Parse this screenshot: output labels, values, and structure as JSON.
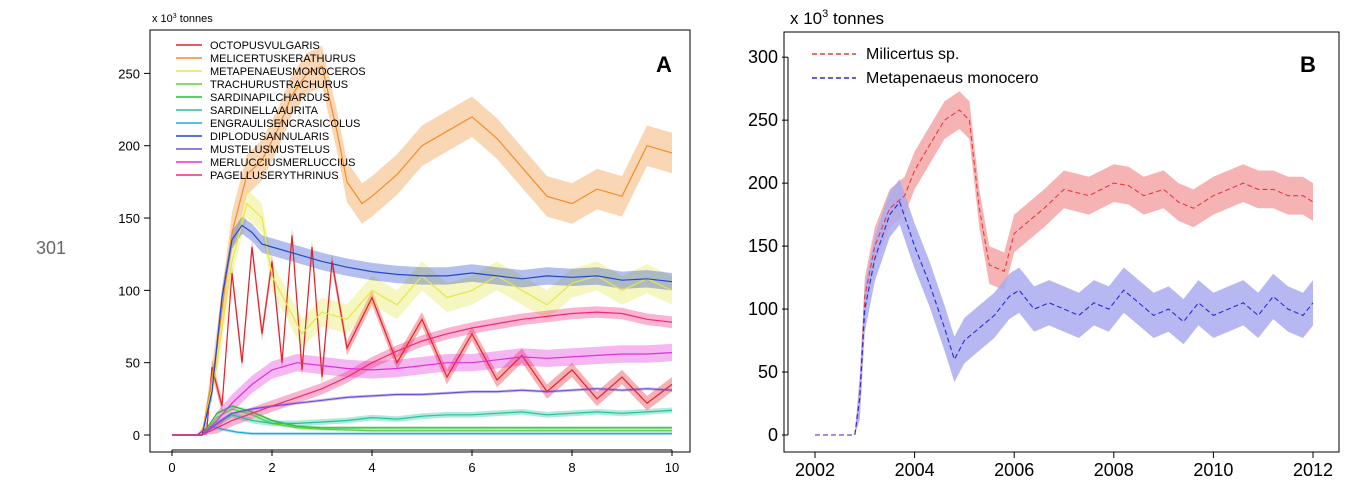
{
  "page_number": "301",
  "chart_data": [
    {
      "type": "line",
      "panel": "A",
      "ylabel_prefix": "x 10",
      "ylabel_exp": "3",
      "ylabel_suffix": " tonnes",
      "xlim": [
        0,
        10
      ],
      "ylim": [
        0,
        280
      ],
      "xticks": [
        0,
        2,
        4,
        6,
        8,
        10
      ],
      "yticks": [
        0,
        50,
        100,
        150,
        200,
        250
      ],
      "grid": false,
      "legend_position": "top-left",
      "series": [
        {
          "name": "OCTOPUSVULGARIS",
          "color": "#e8202a",
          "band": 5,
          "x": [
            0,
            0.5,
            0.7,
            0.8,
            1.0,
            1.2,
            1.4,
            1.6,
            1.8,
            2.0,
            2.2,
            2.4,
            2.6,
            2.8,
            3.0,
            3.2,
            3.5,
            4,
            4.5,
            5,
            5.5,
            6,
            6.5,
            7,
            7.5,
            8,
            8.5,
            9,
            9.5,
            10
          ],
          "y": [
            0,
            0,
            5,
            47,
            20,
            112,
            50,
            130,
            70,
            120,
            50,
            138,
            45,
            130,
            40,
            120,
            60,
            95,
            50,
            80,
            40,
            70,
            38,
            55,
            30,
            45,
            25,
            40,
            22,
            35
          ]
        },
        {
          "name": "MELICERTUSKERATHURUS",
          "color": "#f28c28",
          "band": 14,
          "x": [
            0,
            0.6,
            0.9,
            1.2,
            1.5,
            1.8,
            2.1,
            2.4,
            2.7,
            3.0,
            3.3,
            3.5,
            3.8,
            4.0,
            4.5,
            5.0,
            5.5,
            6.0,
            6.5,
            7.0,
            7.5,
            8.0,
            8.5,
            9.0,
            9.5,
            10
          ],
          "y": [
            0,
            0,
            60,
            140,
            180,
            190,
            210,
            235,
            250,
            255,
            210,
            175,
            160,
            165,
            180,
            200,
            210,
            220,
            205,
            185,
            165,
            160,
            170,
            165,
            200,
            195
          ]
        },
        {
          "name": "METAPENAEUSMONOCEROS",
          "color": "#e6e64a",
          "band": 10,
          "x": [
            0,
            0.6,
            0.9,
            1.2,
            1.5,
            1.8,
            2.0,
            2.3,
            2.6,
            3.0,
            3.5,
            4.0,
            4.5,
            5.0,
            5.5,
            6.0,
            6.5,
            7.0,
            7.5,
            8.0,
            8.5,
            9.0,
            9.5,
            10
          ],
          "y": [
            0,
            0,
            50,
            120,
            160,
            150,
            110,
            90,
            70,
            85,
            80,
            100,
            90,
            110,
            95,
            100,
            110,
            100,
            90,
            105,
            110,
            100,
            108,
            100
          ]
        },
        {
          "name": "TRACHURUSTRACHURUS",
          "color": "#5ecf3a",
          "band": 1,
          "x": [
            0,
            0.6,
            0.9,
            1.2,
            1.6,
            2.0,
            2.5,
            3,
            4,
            5,
            6,
            7,
            8,
            9,
            10
          ],
          "y": [
            0,
            0,
            12,
            18,
            14,
            8,
            5,
            4,
            3,
            3,
            3,
            3,
            3,
            3,
            3
          ]
        },
        {
          "name": "SARDINAPILCHARDUS",
          "color": "#1fbf3a",
          "band": 1,
          "x": [
            0,
            0.6,
            0.9,
            1.2,
            1.6,
            2.0,
            2.5,
            3,
            4,
            5,
            6,
            7,
            8,
            9,
            10
          ],
          "y": [
            0,
            0,
            15,
            20,
            16,
            10,
            6,
            5,
            5,
            5,
            5,
            5,
            5,
            5,
            5
          ]
        },
        {
          "name": "SARDINELLAAURITA",
          "color": "#20c49a",
          "band": 2,
          "x": [
            0,
            0.6,
            0.9,
            1.2,
            1.6,
            2.0,
            2.5,
            3,
            3.5,
            4,
            4.5,
            5,
            5.5,
            6,
            6.5,
            7,
            7.5,
            8,
            8.5,
            9,
            9.5,
            10
          ],
          "y": [
            0,
            0,
            8,
            14,
            10,
            8,
            8,
            9,
            10,
            12,
            11,
            13,
            14,
            14,
            15,
            16,
            14,
            15,
            16,
            15,
            16,
            17
          ]
        },
        {
          "name": "ENGRAULISENCRASICOLUS",
          "color": "#22a8e0",
          "band": 1,
          "x": [
            0,
            0.6,
            0.8,
            1.0,
            1.3,
            1.6,
            2.0,
            3,
            4,
            5,
            6,
            7,
            8,
            9,
            10
          ],
          "y": [
            0,
            0,
            6,
            4,
            2,
            1,
            1,
            1,
            1,
            1,
            1,
            1,
            1,
            1,
            1
          ]
        },
        {
          "name": "DIPLODUSANNULARIS",
          "color": "#2448c8",
          "band": 6,
          "x": [
            0,
            0.6,
            0.8,
            1.0,
            1.2,
            1.4,
            1.6,
            1.8,
            2.0,
            2.5,
            3.0,
            3.5,
            4.0,
            4.5,
            5.0,
            5.5,
            6.0,
            6.5,
            7.0,
            7.5,
            8.0,
            8.5,
            9.0,
            9.5,
            10
          ],
          "y": [
            0,
            0,
            30,
            95,
            135,
            145,
            140,
            132,
            130,
            125,
            120,
            116,
            113,
            111,
            110,
            110,
            112,
            110,
            108,
            110,
            109,
            110,
            107,
            108,
            106
          ]
        },
        {
          "name": "MUSTELUSMUSTELUS",
          "color": "#7050d8",
          "band": 1,
          "x": [
            0,
            0.6,
            0.9,
            1.2,
            1.6,
            2.0,
            2.5,
            3.0,
            3.5,
            4.0,
            4.5,
            5.0,
            5.5,
            6.0,
            6.5,
            7.0,
            7.5,
            8.0,
            8.5,
            9.0,
            9.5,
            10
          ],
          "y": [
            0,
            0,
            8,
            15,
            18,
            20,
            22,
            24,
            26,
            27,
            28,
            28,
            29,
            30,
            30,
            31,
            30,
            31,
            32,
            31,
            32,
            31
          ]
        },
        {
          "name": "MERLUCCIUSMERLUCCIUS",
          "color": "#e030d8",
          "band": 6,
          "x": [
            0,
            0.6,
            0.9,
            1.2,
            1.6,
            2.0,
            2.5,
            3.0,
            3.5,
            4.0,
            4.5,
            5.0,
            5.5,
            6.0,
            6.5,
            7.0,
            7.5,
            8.0,
            8.5,
            9.0,
            9.5,
            10
          ],
          "y": [
            0,
            0,
            10,
            22,
            35,
            45,
            50,
            48,
            46,
            45,
            46,
            48,
            50,
            50,
            52,
            54,
            53,
            54,
            55,
            56,
            56,
            57
          ]
        },
        {
          "name": "PAGELLUSERYTHRINUS",
          "color": "#f0287a",
          "band": 4,
          "x": [
            0,
            0.6,
            0.9,
            1.2,
            1.6,
            2.0,
            2.5,
            3.0,
            3.5,
            4.0,
            4.5,
            5.0,
            5.5,
            6.0,
            6.5,
            7.0,
            7.5,
            8.0,
            8.5,
            9.0,
            9.5,
            10
          ],
          "y": [
            0,
            0,
            5,
            10,
            15,
            20,
            26,
            32,
            40,
            50,
            58,
            65,
            70,
            74,
            77,
            80,
            82,
            84,
            85,
            84,
            80,
            78
          ]
        }
      ]
    },
    {
      "type": "line",
      "panel": "B",
      "ylabel_prefix": "x 10",
      "ylabel_exp": "3",
      "ylabel_suffix": " tonnes",
      "xlim": [
        2002,
        2012
      ],
      "ylim": [
        0,
        320
      ],
      "xticks": [
        2002,
        2004,
        2006,
        2008,
        2010,
        2012
      ],
      "yticks": [
        0,
        50,
        100,
        150,
        200,
        250,
        300
      ],
      "grid": false,
      "legend_position": "top-left",
      "series": [
        {
          "name": "Milicertus sp.",
          "color": "#e83a3a",
          "fill": "#f4a6a6",
          "band": 15,
          "x": [
            2002,
            2002.6,
            2002.8,
            2002.9,
            2003.0,
            2003.2,
            2003.5,
            2003.8,
            2004.0,
            2004.3,
            2004.6,
            2004.9,
            2005.1,
            2005.3,
            2005.5,
            2005.8,
            2006.0,
            2006.3,
            2006.6,
            2007.0,
            2007.5,
            2008.0,
            2008.3,
            2008.6,
            2009.0,
            2009.3,
            2009.6,
            2010.0,
            2010.3,
            2010.6,
            2010.9,
            2011.2,
            2011.5,
            2011.8,
            2012.0
          ],
          "y": [
            0,
            0,
            0,
            30,
            110,
            150,
            180,
            190,
            210,
            230,
            250,
            258,
            250,
            180,
            135,
            130,
            160,
            170,
            180,
            195,
            190,
            200,
            198,
            190,
            195,
            185,
            180,
            190,
            195,
            200,
            195,
            195,
            190,
            190,
            185
          ]
        },
        {
          "name": "Metapenaeus monocero",
          "color": "#2a2ad8",
          "fill": "#aaaaf0",
          "band": 18,
          "x": [
            2002,
            2002.6,
            2002.8,
            2002.9,
            2003.0,
            2003.2,
            2003.5,
            2003.7,
            2004.0,
            2004.3,
            2004.6,
            2004.8,
            2005.0,
            2005.3,
            2005.6,
            2005.9,
            2006.1,
            2006.4,
            2006.7,
            2007.0,
            2007.3,
            2007.6,
            2007.9,
            2008.2,
            2008.5,
            2008.8,
            2009.1,
            2009.4,
            2009.7,
            2010.0,
            2010.3,
            2010.6,
            2010.9,
            2011.2,
            2011.5,
            2011.8,
            2012.0
          ],
          "y": [
            0,
            0,
            0,
            30,
            100,
            140,
            175,
            185,
            150,
            120,
            85,
            60,
            75,
            85,
            95,
            110,
            115,
            100,
            105,
            100,
            95,
            105,
            100,
            115,
            105,
            95,
            100,
            90,
            105,
            95,
            100,
            105,
            95,
            110,
            100,
            95,
            105
          ]
        }
      ]
    }
  ]
}
